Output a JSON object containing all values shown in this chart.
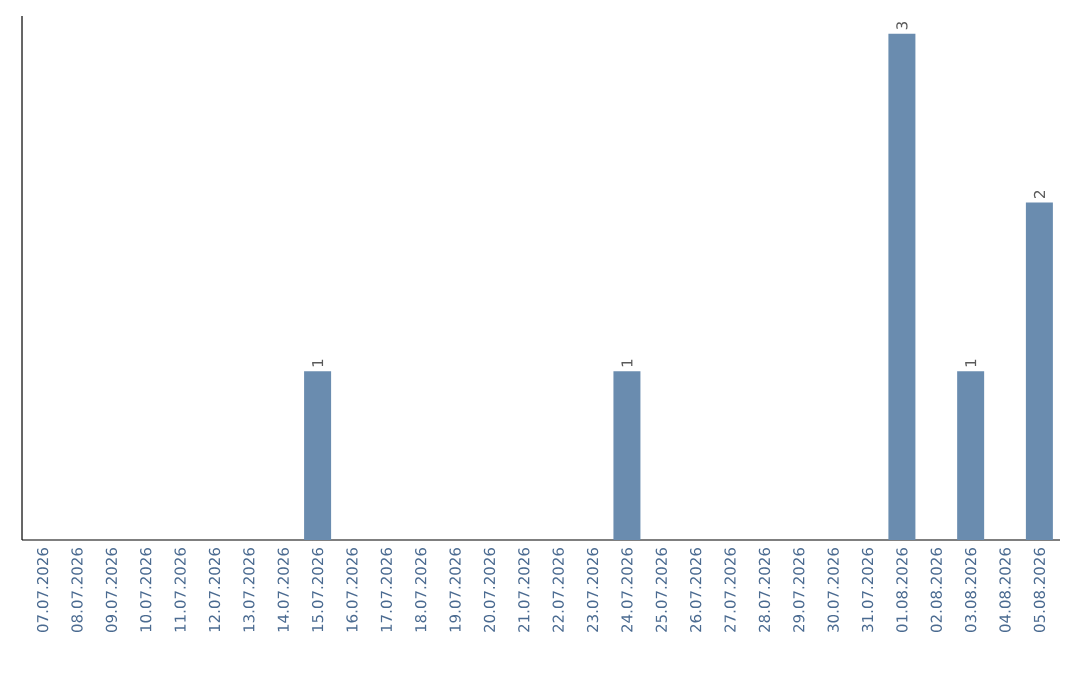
{
  "chart_data": {
    "type": "bar",
    "categories": [
      "07.07.2026",
      "08.07.2026",
      "09.07.2026",
      "10.07.2026",
      "11.07.2026",
      "12.07.2026",
      "13.07.2026",
      "14.07.2026",
      "15.07.2026",
      "16.07.2026",
      "17.07.2026",
      "18.07.2026",
      "19.07.2026",
      "20.07.2026",
      "21.07.2026",
      "22.07.2026",
      "23.07.2026",
      "24.07.2026",
      "25.07.2026",
      "26.07.2026",
      "27.07.2026",
      "28.07.2026",
      "29.07.2026",
      "30.07.2026",
      "31.07.2026",
      "01.08.2026",
      "02.08.2026",
      "03.08.2026",
      "04.08.2026",
      "05.08.2026"
    ],
    "values": [
      0,
      0,
      0,
      0,
      0,
      0,
      0,
      0,
      1,
      0,
      0,
      0,
      0,
      0,
      0,
      0,
      0,
      1,
      0,
      0,
      0,
      0,
      0,
      0,
      0,
      3,
      0,
      1,
      0,
      2
    ],
    "value_labels": [
      null,
      null,
      null,
      null,
      null,
      null,
      null,
      null,
      "1",
      null,
      null,
      null,
      null,
      null,
      null,
      null,
      null,
      "1",
      null,
      null,
      null,
      null,
      null,
      null,
      null,
      "3",
      null,
      "1",
      null,
      "2"
    ],
    "color": "#6a8caf",
    "tick_labels": "x"
  }
}
